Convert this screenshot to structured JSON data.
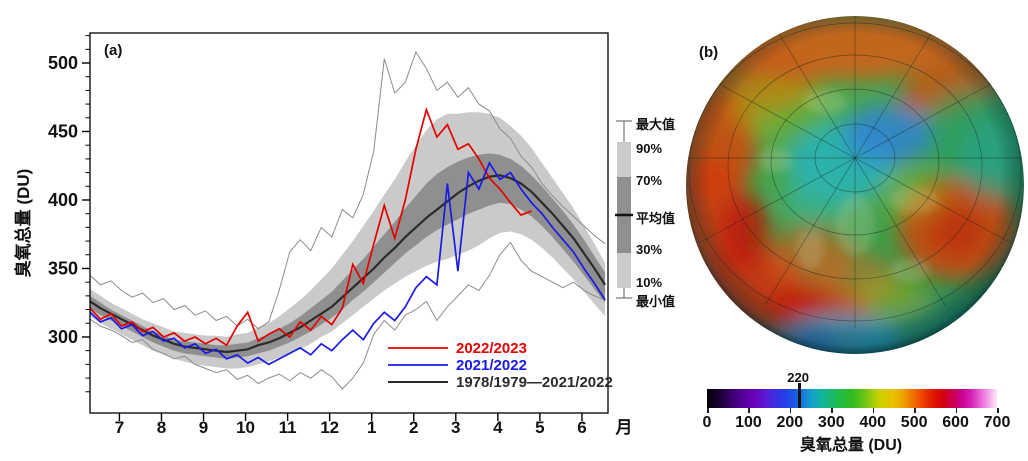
{
  "panel_a": {
    "label": "(a)",
    "y_axis": {
      "title": "臭氧总量 (DU)",
      "ticks": [
        300,
        350,
        400,
        450,
        500
      ],
      "minor_step": 10
    },
    "x_axis": {
      "unit": "月",
      "tick_labels": [
        "7",
        "8",
        "9",
        "10",
        "11",
        "12",
        "1",
        "2",
        "3",
        "4",
        "5",
        "6"
      ]
    },
    "legend": [
      {
        "label": "2022/2023",
        "color": "#e60000"
      },
      {
        "label": "2021/2022",
        "color": "#1a1ae8"
      },
      {
        "label": "1978/1979—2021/2022",
        "color": "#2b2b2b"
      }
    ],
    "percentile_legend": {
      "labels": [
        "最大值",
        "90%",
        "70%",
        "平均值",
        "30%",
        "10%",
        "最小值"
      ],
      "light_band_color": "#cbcbcb",
      "dark_band_color": "#8f8f8f",
      "mean_line_color": "#111111"
    },
    "chart_data": {
      "type": "line",
      "title": "",
      "ylabel": "臭氧总量 (DU)",
      "xlabel": "月",
      "x_start": 6.3,
      "x_step": 0.25,
      "n_points": 50,
      "x_tick_values": [
        7,
        8,
        9,
        10,
        11,
        12,
        13,
        14,
        15,
        16,
        17,
        18
      ],
      "x_tick_labels": [
        "7",
        "8",
        "9",
        "10",
        "11",
        "12",
        "1",
        "2",
        "3",
        "4",
        "5",
        "6"
      ],
      "ylim": [
        244.5,
        521.9
      ],
      "grid": false,
      "legend_position": "lower-right",
      "series": [
        {
          "name": "2022/2023",
          "color": "#e60000",
          "width": 1.7,
          "values": [
            321,
            313,
            317,
            308,
            311,
            304,
            307,
            300,
            303,
            297,
            300,
            295,
            299,
            294,
            308,
            318,
            297,
            302,
            306,
            300,
            311,
            305,
            315,
            309,
            321,
            353,
            339,
            368,
            396,
            372,
            400,
            437,
            466,
            446,
            455,
            437,
            441,
            430,
            416,
            408,
            398,
            389,
            392,
            null,
            null,
            null,
            null,
            null,
            null,
            null
          ]
        },
        {
          "name": "2021/2022",
          "color": "#1a1ae8",
          "width": 1.7,
          "values": [
            318,
            311,
            314,
            306,
            309,
            301,
            304,
            297,
            299,
            292,
            295,
            288,
            291,
            284,
            287,
            281,
            285,
            280,
            284,
            288,
            292,
            287,
            295,
            290,
            298,
            305,
            298,
            310,
            318,
            312,
            322,
            336,
            344,
            338,
            412,
            348,
            420,
            408,
            427,
            415,
            420,
            408,
            398,
            390,
            380,
            371,
            362,
            350,
            339,
            327
          ]
        },
        {
          "name": "1978/1979—2021/2022",
          "color": "#2b2b2b",
          "width": 2.2,
          "values": [
            326,
            321,
            317,
            313,
            309,
            305,
            301,
            298,
            295,
            293,
            292,
            291,
            290,
            289,
            290,
            291,
            294,
            296,
            299,
            303,
            307,
            312,
            317,
            322,
            329,
            336,
            343,
            350,
            358,
            365,
            373,
            380,
            387,
            393,
            399,
            405,
            410,
            414,
            417,
            418,
            416,
            412,
            406,
            398,
            390,
            381,
            372,
            361,
            350,
            338
          ]
        }
      ],
      "bands": {
        "max": [
          345,
          338,
          341,
          334,
          329,
          332,
          325,
          328,
          320,
          323,
          316,
          319,
          312,
          315,
          308,
          313,
          306,
          311,
          334,
          362,
          371,
          363,
          380,
          373,
          393,
          387,
          404,
          436,
          503,
          478,
          486,
          508,
          496,
          480,
          486,
          475,
          482,
          470,
          465,
          452,
          445,
          432,
          424,
          412,
          403,
          395,
          388,
          381,
          374,
          368
        ],
        "p90": [
          335,
          330,
          325,
          321,
          317,
          313,
          310,
          307,
          304,
          303,
          302,
          301,
          301,
          300,
          302,
          303,
          307,
          310,
          315,
          321,
          327,
          334,
          342,
          350,
          360,
          370,
          381,
          392,
          404,
          415,
          428,
          440,
          451,
          459,
          463,
          463,
          464,
          464,
          463,
          460,
          454,
          447,
          438,
          427,
          416,
          405,
          394,
          381,
          368,
          354
        ],
        "p70": [
          330,
          325,
          320,
          316,
          312,
          308,
          304,
          301,
          298,
          297,
          296,
          295,
          294,
          294,
          295,
          296,
          299,
          302,
          306,
          310,
          315,
          321,
          327,
          333,
          341,
          349,
          357,
          366,
          375,
          384,
          394,
          403,
          412,
          419,
          424,
          428,
          431,
          433,
          434,
          433,
          430,
          425,
          418,
          410,
          401,
          392,
          382,
          371,
          359,
          347
        ],
        "p30": [
          321,
          316,
          312,
          308,
          304,
          300,
          296,
          293,
          290,
          288,
          287,
          286,
          285,
          284,
          285,
          286,
          288,
          290,
          293,
          296,
          300,
          304,
          309,
          314,
          320,
          327,
          333,
          340,
          347,
          354,
          361,
          367,
          373,
          378,
          382,
          386,
          390,
          393,
          396,
          398,
          397,
          393,
          388,
          381,
          373,
          364,
          355,
          345,
          335,
          325
        ],
        "p10": [
          315,
          310,
          306,
          302,
          298,
          294,
          290,
          287,
          284,
          282,
          280,
          279,
          278,
          277,
          277,
          278,
          280,
          282,
          285,
          288,
          291,
          295,
          300,
          304,
          310,
          316,
          322,
          328,
          334,
          339,
          344,
          348,
          352,
          355,
          357,
          360,
          363,
          367,
          372,
          376,
          377,
          375,
          371,
          365,
          358,
          350,
          342,
          333,
          324,
          315
        ],
        "min": [
          313,
          308,
          305,
          301,
          296,
          298,
          291,
          288,
          284,
          286,
          280,
          277,
          274,
          276,
          269,
          272,
          266,
          270,
          273,
          268,
          274,
          270,
          276,
          271,
          262,
          270,
          281,
          302,
          312,
          305,
          316,
          320,
          326,
          312,
          322,
          330,
          338,
          334,
          345,
          360,
          369,
          356,
          348,
          344,
          340,
          336,
          340,
          334,
          330,
          327
        ],
        "envelope_color": "#8c8c8c",
        "light_fill": "#cacaca",
        "dark_fill": "#8f8f8f"
      }
    }
  },
  "panel_b": {
    "label": "(b)",
    "colorbar": {
      "ticks": [
        0,
        100,
        200,
        300,
        400,
        500,
        600,
        700
      ],
      "range": [
        0,
        700
      ],
      "marker_value": 220,
      "marker_label": "220",
      "title": "臭氧总量 (DU)",
      "gradient_stops": [
        [
          0.0,
          "#000005"
        ],
        [
          0.05,
          "#20003c"
        ],
        [
          0.1,
          "#45007f"
        ],
        [
          0.16,
          "#6a00b8"
        ],
        [
          0.21,
          "#5520d8"
        ],
        [
          0.26,
          "#2a3ae8"
        ],
        [
          0.3,
          "#1a55e8"
        ],
        [
          0.33,
          "#1878d8"
        ],
        [
          0.36,
          "#18a0c8"
        ],
        [
          0.39,
          "#10b4a8"
        ],
        [
          0.42,
          "#18b878"
        ],
        [
          0.46,
          "#22bb44"
        ],
        [
          0.5,
          "#33bb22"
        ],
        [
          0.54,
          "#66c414"
        ],
        [
          0.57,
          "#a0cc08"
        ],
        [
          0.6,
          "#cfd000"
        ],
        [
          0.64,
          "#e8c400"
        ],
        [
          0.67,
          "#f0a800"
        ],
        [
          0.7,
          "#f08000"
        ],
        [
          0.73,
          "#ee5500"
        ],
        [
          0.76,
          "#e62e00"
        ],
        [
          0.79,
          "#dd0f00"
        ],
        [
          0.82,
          "#d4001a"
        ],
        [
          0.85,
          "#cc0055"
        ],
        [
          0.88,
          "#cc0090"
        ],
        [
          0.91,
          "#d420b4"
        ],
        [
          0.94,
          "#e45fd0"
        ],
        [
          0.97,
          "#f4a0e4"
        ],
        [
          1.0,
          "#ffeaf8"
        ]
      ]
    }
  }
}
